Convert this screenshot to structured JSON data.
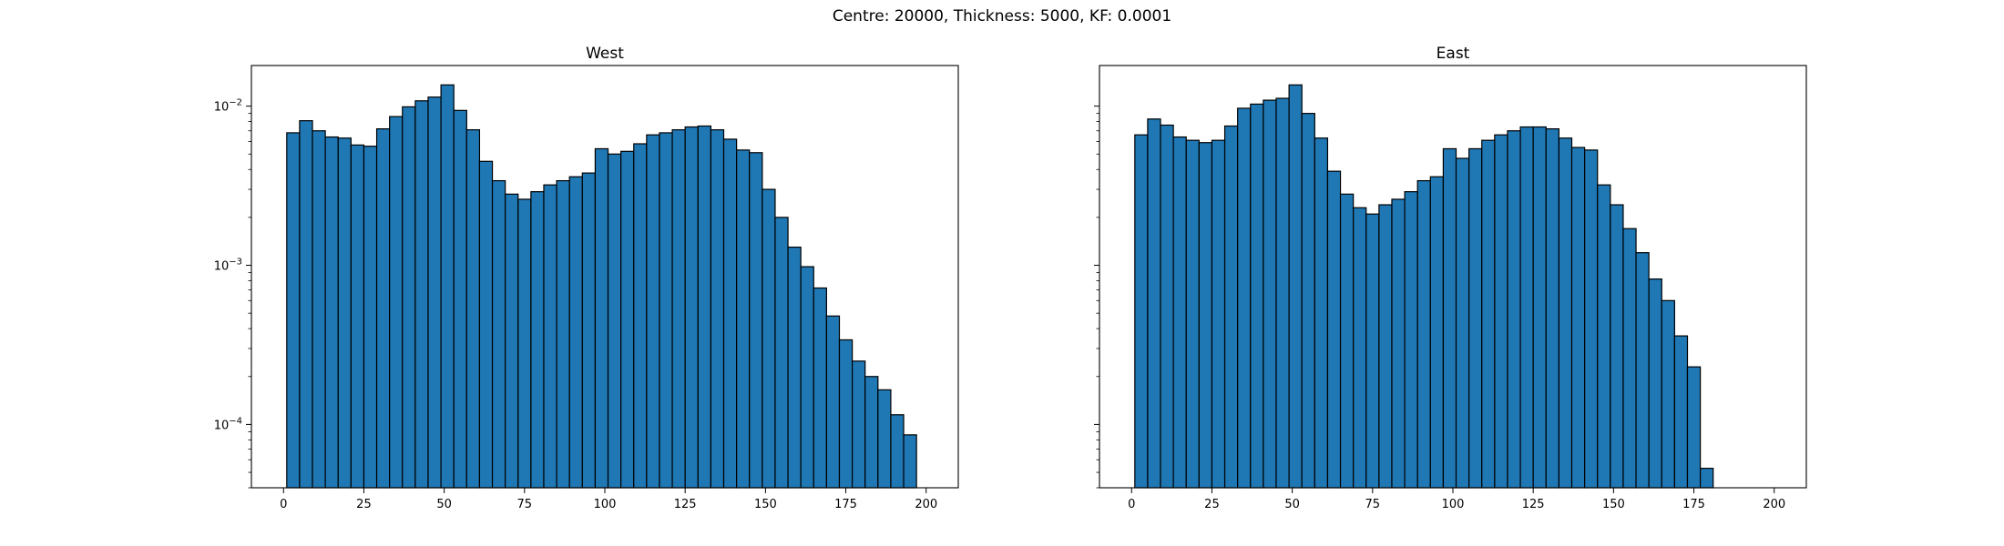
{
  "suptitle": "Centre: 20000, Thickness: 5000, KF: 0.0001",
  "style": {
    "bar_color": "#1f77b4",
    "edge_color": "#000000"
  },
  "chart_data": [
    {
      "type": "bar",
      "title": "West",
      "xlabel": "",
      "ylabel": "",
      "yscale": "log",
      "xlim": [
        -10,
        210
      ],
      "ylim": [
        4e-05,
        0.018
      ],
      "x_ticks": [
        0,
        25,
        50,
        75,
        100,
        125,
        150,
        175,
        200
      ],
      "y_ticks": [
        {
          "value": 0.0001,
          "base": "10",
          "exp": "−4"
        },
        {
          "value": 0.001,
          "base": "10",
          "exp": "−3"
        },
        {
          "value": 0.01,
          "base": "10",
          "exp": "−2"
        }
      ],
      "bin_start": 1,
      "bin_width": 4,
      "values": [
        0.0068,
        0.0081,
        0.007,
        0.0064,
        0.0063,
        0.0057,
        0.0056,
        0.0072,
        0.0086,
        0.0099,
        0.0108,
        0.0114,
        0.0136,
        0.0094,
        0.0071,
        0.0045,
        0.0034,
        0.0028,
        0.0026,
        0.0029,
        0.0032,
        0.0034,
        0.0036,
        0.0038,
        0.0054,
        0.005,
        0.0052,
        0.0058,
        0.0066,
        0.0068,
        0.0071,
        0.0074,
        0.0075,
        0.0071,
        0.0062,
        0.0053,
        0.0051,
        0.003,
        0.002,
        0.0013,
        0.00098,
        0.00072,
        0.00048,
        0.00034,
        0.00025,
        0.0002,
        0.000165,
        0.000115,
        8.6e-05
      ]
    },
    {
      "type": "bar",
      "title": "East",
      "xlabel": "",
      "ylabel": "",
      "yscale": "log",
      "xlim": [
        -10,
        210
      ],
      "ylim": [
        4e-05,
        0.018
      ],
      "x_ticks": [
        0,
        25,
        50,
        75,
        100,
        125,
        150,
        175,
        200
      ],
      "y_ticks": [],
      "bin_start": 1,
      "bin_width": 4,
      "values": [
        0.0066,
        0.0083,
        0.0076,
        0.0064,
        0.0061,
        0.0059,
        0.0061,
        0.0075,
        0.0097,
        0.0103,
        0.0109,
        0.0112,
        0.0136,
        0.009,
        0.0063,
        0.0039,
        0.0028,
        0.0023,
        0.0021,
        0.0024,
        0.0026,
        0.0029,
        0.0034,
        0.0036,
        0.0054,
        0.0047,
        0.0054,
        0.0061,
        0.0066,
        0.007,
        0.0074,
        0.0074,
        0.0072,
        0.0063,
        0.0055,
        0.0053,
        0.0032,
        0.0024,
        0.0017,
        0.0012,
        0.00082,
        0.0006,
        0.00036,
        0.00023,
        5.3e-05
      ]
    }
  ]
}
